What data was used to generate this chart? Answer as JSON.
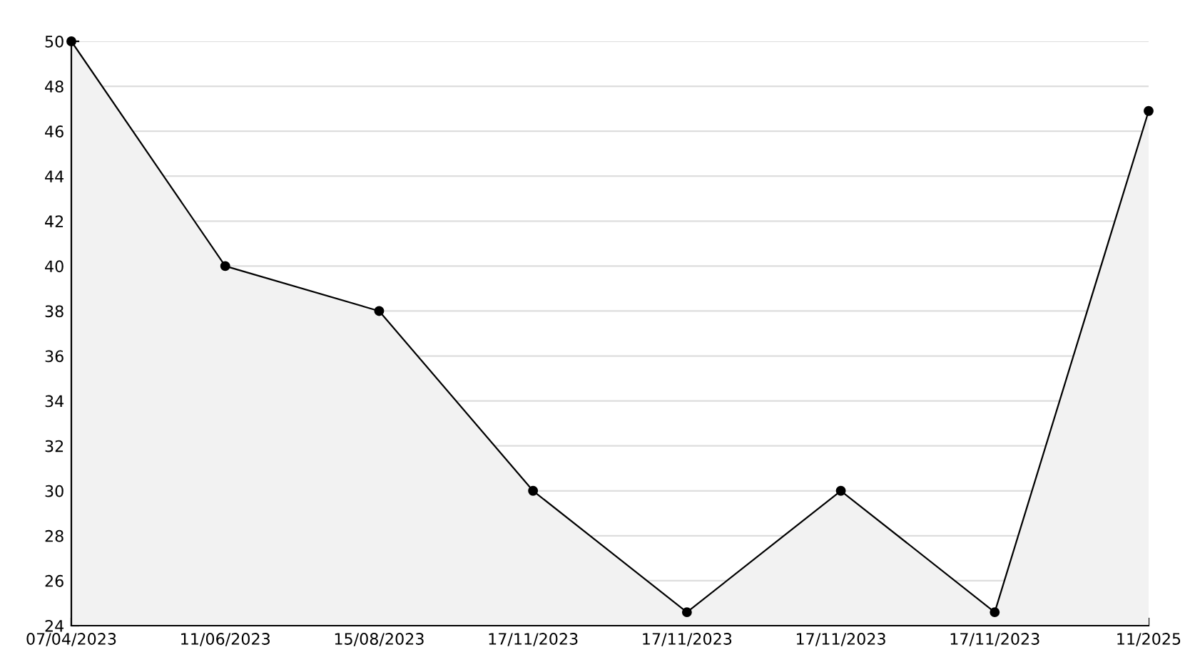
{
  "chart_data": {
    "type": "area",
    "categories": [
      "07/04/2023",
      "11/06/2023",
      "15/08/2023",
      "17/11/2023",
      "17/11/2023",
      "17/11/2023",
      "17/11/2023",
      "11/2025"
    ],
    "series": [
      {
        "color": "#000000",
        "values": [
          50,
          40,
          38,
          30,
          24.6,
          30,
          24.6,
          46.9
        ]
      }
    ],
    "ylim": [
      24,
      50
    ],
    "yticks": [
      24,
      26,
      28,
      30,
      32,
      34,
      36,
      38,
      40,
      42,
      44,
      46,
      48,
      50
    ],
    "grid": "y",
    "marker": "circle",
    "line_style": "solid"
  }
}
